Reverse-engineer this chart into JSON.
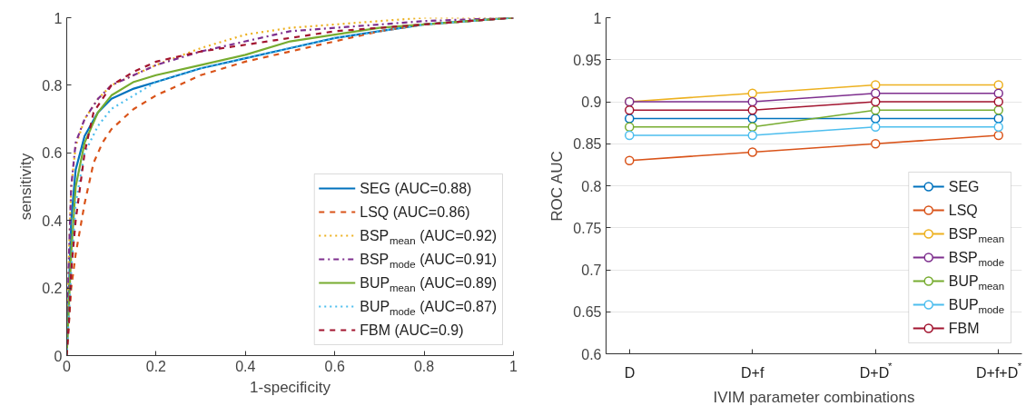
{
  "chart_data": [
    {
      "type": "line",
      "xlabel": "1-specificity",
      "ylabel": "sensitivity",
      "xlim": [
        0,
        1
      ],
      "ylim": [
        0,
        1
      ],
      "xticks": [
        0,
        0.2,
        0.4,
        0.6,
        0.8,
        1
      ],
      "yticks": [
        0,
        0.2,
        0.4,
        0.6,
        0.8,
        1
      ],
      "grid": false,
      "legend": "bottom right",
      "marker": "none",
      "series": [
        {
          "name": "SEG (AUC=0.88)",
          "color": "#0072bd",
          "line_style": "solid",
          "x": [
            0,
            0.005,
            0.01,
            0.02,
            0.04,
            0.07,
            0.1,
            0.15,
            0.2,
            0.3,
            0.4,
            0.5,
            0.6,
            0.7,
            0.8,
            0.9,
            1
          ],
          "values": [
            0,
            0.2,
            0.4,
            0.55,
            0.65,
            0.72,
            0.76,
            0.79,
            0.81,
            0.85,
            0.88,
            0.91,
            0.94,
            0.96,
            0.98,
            0.99,
            1
          ]
        },
        {
          "name": "LSQ (AUC=0.86)",
          "color": "#d95319",
          "line_style": "dashed",
          "x": [
            0,
            0.01,
            0.02,
            0.04,
            0.06,
            0.08,
            0.1,
            0.15,
            0.2,
            0.3,
            0.4,
            0.5,
            0.6,
            0.7,
            0.8,
            0.9,
            1
          ],
          "values": [
            0,
            0.2,
            0.3,
            0.45,
            0.57,
            0.63,
            0.67,
            0.73,
            0.77,
            0.83,
            0.87,
            0.9,
            0.93,
            0.96,
            0.98,
            0.99,
            1
          ]
        },
        {
          "name": "BSP$_{mean}$ (AUC=0.92)",
          "color": "#edb120",
          "line_style": "dotted",
          "x": [
            0,
            0.005,
            0.01,
            0.02,
            0.04,
            0.07,
            0.1,
            0.15,
            0.2,
            0.3,
            0.4,
            0.5,
            0.6,
            0.7,
            0.8,
            1
          ],
          "values": [
            0,
            0.3,
            0.5,
            0.62,
            0.7,
            0.76,
            0.8,
            0.83,
            0.86,
            0.91,
            0.95,
            0.97,
            0.98,
            0.99,
            1,
            1
          ]
        },
        {
          "name": "BSP$_{mode}$ (AUC=0.91)",
          "color": "#7e2f8e",
          "line_style": "dashdot",
          "x": [
            0,
            0.005,
            0.01,
            0.02,
            0.04,
            0.07,
            0.1,
            0.15,
            0.2,
            0.3,
            0.4,
            0.5,
            0.6,
            0.7,
            0.8,
            1
          ],
          "values": [
            0,
            0.3,
            0.5,
            0.63,
            0.7,
            0.76,
            0.8,
            0.83,
            0.86,
            0.9,
            0.93,
            0.96,
            0.97,
            0.98,
            0.99,
            1
          ]
        },
        {
          "name": "BUP$_{mean}$ (AUC=0.89)",
          "color": "#77ac30",
          "line_style": "solid",
          "x": [
            0,
            0.01,
            0.02,
            0.04,
            0.07,
            0.1,
            0.15,
            0.2,
            0.3,
            0.4,
            0.5,
            0.6,
            0.7,
            0.8,
            0.9,
            1
          ],
          "values": [
            0,
            0.3,
            0.5,
            0.63,
            0.72,
            0.77,
            0.81,
            0.83,
            0.86,
            0.89,
            0.93,
            0.95,
            0.97,
            0.98,
            0.99,
            1
          ]
        },
        {
          "name": "BUP$_{mode}$ (AUC=0.87)",
          "color": "#4dbeee",
          "line_style": "dotted",
          "x": [
            0,
            0.01,
            0.02,
            0.04,
            0.07,
            0.1,
            0.15,
            0.2,
            0.3,
            0.4,
            0.5,
            0.6,
            0.7,
            0.8,
            0.9,
            1
          ],
          "values": [
            0,
            0.25,
            0.45,
            0.6,
            0.68,
            0.73,
            0.77,
            0.81,
            0.85,
            0.88,
            0.91,
            0.94,
            0.96,
            0.98,
            0.99,
            1
          ]
        },
        {
          "name": "FBM (AUC=0.9)",
          "color": "#a2142f",
          "line_style": "dashed",
          "x": [
            0,
            0.005,
            0.01,
            0.02,
            0.04,
            0.06,
            0.1,
            0.15,
            0.2,
            0.3,
            0.4,
            0.5,
            0.6,
            0.7,
            0.8,
            0.9,
            1
          ],
          "values": [
            0,
            0.1,
            0.25,
            0.4,
            0.6,
            0.72,
            0.8,
            0.84,
            0.87,
            0.9,
            0.92,
            0.94,
            0.96,
            0.97,
            0.98,
            0.99,
            1
          ]
        }
      ]
    },
    {
      "type": "line",
      "xlabel": "IVIM parameter combinations",
      "ylabel": "ROC AUC",
      "categories": [
        "D",
        "D+f",
        "D+D$^{*}$",
        "D+f+D$^{*}$"
      ],
      "ylim": [
        0.6,
        1
      ],
      "yticks": [
        0.6,
        0.65,
        0.7,
        0.75,
        0.8,
        0.85,
        0.9,
        0.95,
        1
      ],
      "grid": "y",
      "legend": "bottom right",
      "marker": "circle",
      "line_style": "solid",
      "series": [
        {
          "name": "SEG",
          "color": "#0072bd",
          "values": [
            0.88,
            0.88,
            0.88,
            0.88
          ]
        },
        {
          "name": "LSQ",
          "color": "#d95319",
          "values": [
            0.83,
            0.84,
            0.85,
            0.86
          ]
        },
        {
          "name": "BSP$_{mean}$",
          "color": "#edb120",
          "values": [
            0.9,
            0.91,
            0.92,
            0.92
          ]
        },
        {
          "name": "BSP$_{mode}$",
          "color": "#7e2f8e",
          "values": [
            0.9,
            0.9,
            0.91,
            0.91
          ]
        },
        {
          "name": "BUP$_{mean}$",
          "color": "#77ac30",
          "values": [
            0.87,
            0.87,
            0.89,
            0.89
          ]
        },
        {
          "name": "BUP$_{mode}$",
          "color": "#4dbeee",
          "values": [
            0.86,
            0.86,
            0.87,
            0.87
          ]
        },
        {
          "name": "FBM",
          "color": "#a2142f",
          "values": [
            0.89,
            0.89,
            0.9,
            0.9
          ]
        }
      ]
    }
  ]
}
